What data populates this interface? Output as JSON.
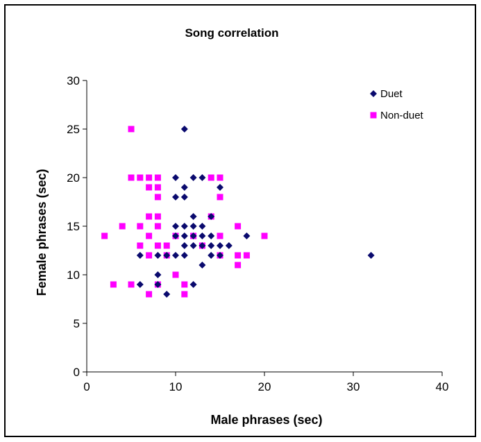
{
  "chart_data": {
    "type": "scatter",
    "title": "Song correlation",
    "xlabel": "Male phrases (sec)",
    "ylabel": "Female phrases (sec)",
    "xlim": [
      0,
      40
    ],
    "ylim": [
      0,
      30
    ],
    "x_ticks": [
      0,
      10,
      20,
      30,
      40
    ],
    "y_ticks": [
      0,
      5,
      10,
      15,
      20,
      25,
      30
    ],
    "grid": false,
    "legend_position": "top-right",
    "series": [
      {
        "name": "Duet",
        "marker": "diamond",
        "color": "#0a0a6e",
        "points": [
          [
            11,
            25
          ],
          [
            10,
            20
          ],
          [
            12,
            20
          ],
          [
            13,
            20
          ],
          [
            15,
            19
          ],
          [
            11,
            19
          ],
          [
            10,
            18
          ],
          [
            11,
            18
          ],
          [
            12,
            16
          ],
          [
            14,
            16
          ],
          [
            10,
            15
          ],
          [
            11,
            15
          ],
          [
            12,
            15
          ],
          [
            13,
            15
          ],
          [
            10,
            14
          ],
          [
            11,
            14
          ],
          [
            12,
            14
          ],
          [
            13,
            14
          ],
          [
            14,
            14
          ],
          [
            18,
            14
          ],
          [
            11,
            13
          ],
          [
            12,
            13
          ],
          [
            13,
            13
          ],
          [
            14,
            13
          ],
          [
            15,
            13
          ],
          [
            16,
            13
          ],
          [
            6,
            12
          ],
          [
            8,
            12
          ],
          [
            9,
            12
          ],
          [
            10,
            12
          ],
          [
            11,
            12
          ],
          [
            14,
            12
          ],
          [
            15,
            12
          ],
          [
            32,
            12
          ],
          [
            13,
            11
          ],
          [
            8,
            10
          ],
          [
            6,
            9
          ],
          [
            8,
            9
          ],
          [
            12,
            9
          ],
          [
            9,
            8
          ]
        ]
      },
      {
        "name": "Non-duet",
        "marker": "square",
        "color": "#ff00ff",
        "points": [
          [
            5,
            25
          ],
          [
            5,
            20
          ],
          [
            6,
            20
          ],
          [
            7,
            20
          ],
          [
            8,
            20
          ],
          [
            14,
            20
          ],
          [
            15,
            20
          ],
          [
            7,
            19
          ],
          [
            8,
            19
          ],
          [
            8,
            18
          ],
          [
            15,
            18
          ],
          [
            7,
            16
          ],
          [
            8,
            16
          ],
          [
            14,
            16
          ],
          [
            4,
            15
          ],
          [
            6,
            15
          ],
          [
            8,
            15
          ],
          [
            17,
            15
          ],
          [
            2,
            14
          ],
          [
            7,
            14
          ],
          [
            10,
            14
          ],
          [
            12,
            14
          ],
          [
            15,
            14
          ],
          [
            20,
            14
          ],
          [
            6,
            13
          ],
          [
            8,
            13
          ],
          [
            9,
            13
          ],
          [
            13,
            13
          ],
          [
            7,
            12
          ],
          [
            9,
            12
          ],
          [
            15,
            12
          ],
          [
            17,
            12
          ],
          [
            18,
            12
          ],
          [
            17,
            11
          ],
          [
            10,
            10
          ],
          [
            3,
            9
          ],
          [
            5,
            9
          ],
          [
            8,
            9
          ],
          [
            11,
            9
          ],
          [
            7,
            8
          ],
          [
            11,
            8
          ]
        ]
      }
    ]
  }
}
